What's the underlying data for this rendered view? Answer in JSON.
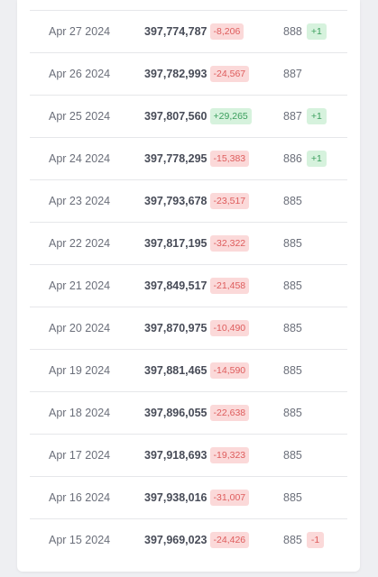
{
  "rows": [
    {
      "date": "Apr 27 2024",
      "value": "397,774,787",
      "change": "-8,206",
      "change_type": "neg",
      "count": "888",
      "count_change": "+1",
      "count_change_type": "pos"
    },
    {
      "date": "Apr 26 2024",
      "value": "397,782,993",
      "change": "-24,567",
      "change_type": "neg",
      "count": "887",
      "count_change": null,
      "count_change_type": null
    },
    {
      "date": "Apr 25 2024",
      "value": "397,807,560",
      "change": "+29,265",
      "change_type": "pos",
      "count": "887",
      "count_change": "+1",
      "count_change_type": "pos"
    },
    {
      "date": "Apr 24 2024",
      "value": "397,778,295",
      "change": "-15,383",
      "change_type": "neg",
      "count": "886",
      "count_change": "+1",
      "count_change_type": "pos"
    },
    {
      "date": "Apr 23 2024",
      "value": "397,793,678",
      "change": "-23,517",
      "change_type": "neg",
      "count": "885",
      "count_change": null,
      "count_change_type": null
    },
    {
      "date": "Apr 22 2024",
      "value": "397,817,195",
      "change": "-32,322",
      "change_type": "neg",
      "count": "885",
      "count_change": null,
      "count_change_type": null
    },
    {
      "date": "Apr 21 2024",
      "value": "397,849,517",
      "change": "-21,458",
      "change_type": "neg",
      "count": "885",
      "count_change": null,
      "count_change_type": null
    },
    {
      "date": "Apr 20 2024",
      "value": "397,870,975",
      "change": "-10,490",
      "change_type": "neg",
      "count": "885",
      "count_change": null,
      "count_change_type": null
    },
    {
      "date": "Apr 19 2024",
      "value": "397,881,465",
      "change": "-14,590",
      "change_type": "neg",
      "count": "885",
      "count_change": null,
      "count_change_type": null
    },
    {
      "date": "Apr 18 2024",
      "value": "397,896,055",
      "change": "-22,638",
      "change_type": "neg",
      "count": "885",
      "count_change": null,
      "count_change_type": null
    },
    {
      "date": "Apr 17 2024",
      "value": "397,918,693",
      "change": "-19,323",
      "change_type": "neg",
      "count": "885",
      "count_change": null,
      "count_change_type": null
    },
    {
      "date": "Apr 16 2024",
      "value": "397,938,016",
      "change": "-31,007",
      "change_type": "neg",
      "count": "885",
      "count_change": null,
      "count_change_type": null
    },
    {
      "date": "Apr 15 2024",
      "value": "397,969,023",
      "change": "-24,426",
      "change_type": "neg",
      "count": "885",
      "count_change": "-1",
      "count_change_type": "neg"
    }
  ],
  "colors": {
    "negative_bg": "#fbd9d9",
    "negative_text": "#de5c5c",
    "positive_bg": "#d6f2dd",
    "positive_text": "#3a9e5c"
  }
}
